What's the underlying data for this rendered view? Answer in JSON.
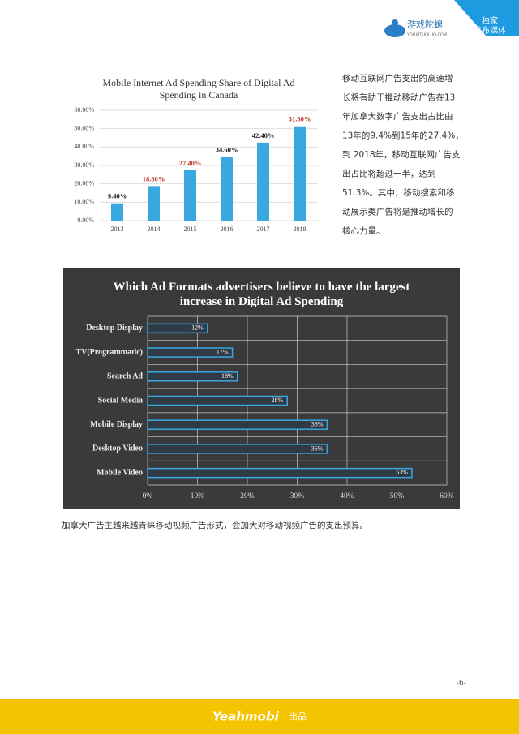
{
  "header": {
    "logo_name": "游戏陀螺",
    "logo_url": "YOUXITUOLUO.COM",
    "tab_line1": "独家",
    "tab_line2": "发布媒体"
  },
  "chart_data": [
    {
      "type": "bar",
      "title": "Mobile Internet Ad Spending Share of Digital Ad Spending in Canada",
      "categories": [
        "2013",
        "2014",
        "2015",
        "2016",
        "2017",
        "2018"
      ],
      "values": [
        9.4,
        18.8,
        27.4,
        34.6,
        42.4,
        51.3
      ],
      "value_labels": [
        "9.40%",
        "18.80%",
        "27.40%",
        "34.60%",
        "42.40%",
        "51.30%"
      ],
      "value_label_colors": [
        "#222222",
        "#c0392b",
        "#c0392b",
        "#222222",
        "#222222",
        "#c0392b"
      ],
      "color": "#3aa8e0",
      "ylim": [
        0,
        60
      ],
      "yticks": [
        {
          "value": 0,
          "label": "0.00%"
        },
        {
          "value": 10,
          "label": "10.00%"
        },
        {
          "value": 20,
          "label": "20.00%"
        },
        {
          "value": 30,
          "label": "30.00%"
        },
        {
          "value": 40,
          "label": "40.00%"
        },
        {
          "value": 50,
          "label": "50.00%"
        },
        {
          "value": 60,
          "label": "60.00%"
        }
      ],
      "grid": true
    },
    {
      "type": "barh",
      "title": "Which Ad Formats advertisers believe to have the largest increase in Digital Ad Spending",
      "categories": [
        "Desktop Display",
        "TV(Programmatic)",
        "Search Ad",
        "Social Media",
        "Mobile Display",
        "Desktop Video",
        "Mobile Video"
      ],
      "values": [
        12,
        17,
        18,
        28,
        36,
        36,
        53
      ],
      "value_labels": [
        "12%",
        "17%",
        "18%",
        "28%",
        "36%",
        "36%",
        "53%"
      ],
      "color": "#3aa8e0",
      "xlim": [
        0,
        60
      ],
      "xticks": [
        {
          "value": 0,
          "label": "0%"
        },
        {
          "value": 10,
          "label": "10%"
        },
        {
          "value": 20,
          "label": "20%"
        },
        {
          "value": 30,
          "label": "30%"
        },
        {
          "value": 40,
          "label": "40%"
        },
        {
          "value": 50,
          "label": "50%"
        },
        {
          "value": 60,
          "label": "60%"
        }
      ],
      "grid": true
    }
  ],
  "side_text": [
    "移动互联网广告支出的高速增",
    "长将有助于推动移动广告在13",
    "年加拿大数字广告支出占比由",
    "13年的9.4%到15年的27.4%，",
    "到 2018年，移动互联网广告支",
    "出占比将超过一半，达到",
    "51.3%。其中，移动搜索和移",
    "动展示类广告将是推动增长的",
    "核心力量。"
  ],
  "caption": "加拿大广告主越来越青睐移动视频广告形式，会加大对移动视频广告的支出预算。",
  "page_number": "-6-",
  "footer": {
    "brand": "Yeahmobi",
    "label": "出品"
  }
}
